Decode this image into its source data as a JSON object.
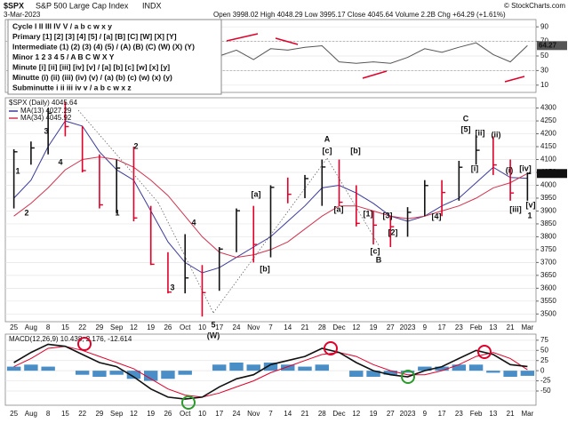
{
  "chart_data": {
    "type": "ohlc",
    "symbol": "$SPX",
    "name": "S&P 500 Large Cap Index",
    "exchange": "INDX",
    "date": "3-Mar-2023",
    "quote": "Open 3998.02  High 4048.29  Low 3995.17  Close 4045.64  Volume 2.2B  Chg +64.29 (+1.61%)",
    "credit": "© StockCharts.com",
    "wave_legend": [
      {
        "text": "Cycle I II III IV V / a b c w x y",
        "color": "#1f1fb0"
      },
      {
        "text": "Primary [1] [2] [3] [4] [5] / [a] [B] [C] [W] [X] [Y]",
        "color": "#111111"
      },
      {
        "text": "Intermediate (1) (2) (3) (4) (5) / (A) (B) (C) (W) (X) (Y)",
        "color": "#7a1a8a"
      },
      {
        "text": "Minor 1 2 3 4 5 / A B C W X Y",
        "color": "#1a2a70"
      },
      {
        "text": "Minute [i] [ii] [iii] [iv] [v] / [a] [b] [c] [w] [x] [y]",
        "color": "#2a8a2a"
      },
      {
        "text": "Minutte (i) (ii) (iii) (iv) (v) / (a) (b) (c) (w) (x) (y)",
        "color": "#d09a00"
      },
      {
        "text": "Subminutte i ii iii iv v / a b c w x z",
        "color": "#888888"
      }
    ],
    "categories": [
      "25",
      "Aug",
      "8",
      "15",
      "22",
      "29",
      "Sep",
      "12",
      "19",
      "26",
      "Oct",
      "10",
      "17",
      "24",
      "Nov",
      "7",
      "14",
      "21",
      "28",
      "Dec",
      "12",
      "19",
      "27",
      "2023",
      "9",
      "17",
      "23",
      "Feb",
      "13",
      "21",
      "Mar"
    ],
    "price": {
      "legend": "$SPX (Daily) 4045.64",
      "ylim": [
        3470,
        4340
      ],
      "yticks": [
        3500,
        3550,
        3600,
        3650,
        3700,
        3750,
        3800,
        3850,
        3900,
        3950,
        4000,
        4050,
        4100,
        4150,
        4200,
        4250,
        4300
      ],
      "last_label": "4045.64",
      "high": [
        4140,
        4170,
        4300,
        4325,
        4230,
        4120,
        4100,
        4150,
        3920,
        3740,
        3810,
        3690,
        3760,
        3910,
        3920,
        4000,
        4030,
        4040,
        4100,
        4100,
        4000,
        3900,
        3880,
        3915,
        4020,
        4020,
        4095,
        4195,
        4190,
        4100,
        4050
      ],
      "low": [
        3910,
        4080,
        4120,
        4190,
        4050,
        3910,
        3890,
        3860,
        3690,
        3580,
        3580,
        3490,
        3590,
        3740,
        3700,
        3720,
        3930,
        3950,
        3920,
        3920,
        3840,
        3770,
        3760,
        3800,
        3880,
        3880,
        3940,
        4080,
        4040,
        3940,
        3940
      ],
      "close": [
        4130,
        4145,
        4280,
        4228,
        4057,
        3924,
        4067,
        3873,
        3693,
        3585,
        3640,
        3583,
        3752,
        3901,
        3770,
        3992,
        3965,
        4026,
        4071,
        3934,
        3852,
        3845,
        3839,
        3895,
        3999,
        3972,
        4070,
        4136,
        4079,
        3970,
        4045.64
      ],
      "up_color": "#111111",
      "down_color": "#e0002a",
      "series": [
        {
          "name": "MA(13) 4027.29",
          "color": "#3a3a9a",
          "values": [
            3950,
            4020,
            4150,
            4250,
            4230,
            4130,
            4060,
            4020,
            3900,
            3780,
            3700,
            3660,
            3680,
            3720,
            3760,
            3800,
            3860,
            3920,
            3990,
            4000,
            3970,
            3930,
            3880,
            3860,
            3880,
            3920,
            3950,
            4010,
            4070,
            4030,
            4027.29
          ]
        },
        {
          "name": "MA(34) 4045.92",
          "color": "#d0334f",
          "values": [
            3880,
            3930,
            3990,
            4060,
            4100,
            4110,
            4100,
            4070,
            4020,
            3960,
            3880,
            3800,
            3740,
            3720,
            3730,
            3750,
            3780,
            3830,
            3880,
            3920,
            3920,
            3900,
            3880,
            3870,
            3880,
            3900,
            3920,
            3950,
            3990,
            4010,
            4045.92
          ]
        }
      ]
    },
    "rsi": {
      "ylim": [
        0,
        100
      ],
      "yticks": [
        10,
        30,
        50,
        70,
        90
      ],
      "last_label": "64.27",
      "color": "#555555",
      "values": [
        60,
        68,
        72,
        55,
        40,
        35,
        55,
        35,
        28,
        30,
        40,
        32,
        50,
        58,
        45,
        60,
        58,
        62,
        64,
        42,
        40,
        42,
        40,
        48,
        60,
        55,
        62,
        68,
        52,
        42,
        64.27
      ]
    },
    "macd": {
      "legend": "MACD(12,26,9) 10.438, 2.176, -12.614",
      "ylim": [
        -85,
        90
      ],
      "yticks": [
        -50,
        -25,
        0,
        25,
        50,
        75
      ],
      "macd": {
        "color": "#111111",
        "values": [
          20,
          45,
          65,
          60,
          40,
          20,
          10,
          -15,
          -45,
          -65,
          -70,
          -65,
          -40,
          -20,
          -10,
          15,
          25,
          35,
          55,
          45,
          20,
          0,
          -10,
          -15,
          0,
          10,
          30,
          50,
          40,
          15,
          10.438
        ]
      },
      "signal": {
        "color": "#e0002a",
        "values": [
          10,
          30,
          55,
          60,
          50,
          35,
          20,
          5,
          -20,
          -45,
          -60,
          -65,
          -55,
          -40,
          -25,
          -5,
          10,
          25,
          40,
          45,
          35,
          15,
          0,
          -10,
          -10,
          0,
          15,
          35,
          45,
          30,
          2.176
        ]
      },
      "histogram": {
        "color": "#4a8ec8",
        "values": [
          10,
          15,
          10,
          0,
          -10,
          -15,
          -10,
          -20,
          -25,
          -20,
          -10,
          0,
          15,
          20,
          15,
          20,
          15,
          10,
          15,
          0,
          -15,
          -15,
          -10,
          -5,
          10,
          10,
          15,
          15,
          -5,
          -15,
          -12.614
        ]
      }
    },
    "wave_labels": [
      {
        "text": "1",
        "color": "#1a2a70"
      },
      {
        "text": "2",
        "color": "#1a2a70"
      },
      {
        "text": "3",
        "color": "#1a2a70"
      },
      {
        "text": "4",
        "color": "#1a2a70"
      },
      {
        "text": "1",
        "color": "#1a2a70"
      },
      {
        "text": "2",
        "color": "#1a2a70"
      },
      {
        "text": "3",
        "color": "#1a2a70"
      },
      {
        "text": "4",
        "color": "#1a2a70"
      },
      {
        "text": "5",
        "color": "#1a2a70"
      },
      {
        "text": "(W)",
        "color": "#7a1a8a"
      },
      {
        "text": "[a]",
        "color": "#2a8a2a"
      },
      {
        "text": "[b]",
        "color": "#2a8a2a"
      },
      {
        "text": "A",
        "color": "#1a2a70"
      },
      {
        "text": "[c]",
        "color": "#2a8a2a"
      },
      {
        "text": "[b]",
        "color": "#2a8a2a"
      },
      {
        "text": "[a]",
        "color": "#2a8a2a"
      },
      {
        "text": "[c]",
        "color": "#2a8a2a"
      },
      {
        "text": "B",
        "color": "#1a2a70"
      },
      {
        "text": "[1]",
        "color": "#2a8a2a"
      },
      {
        "text": "[2]",
        "color": "#2a8a2a"
      },
      {
        "text": "[3]",
        "color": "#2a8a2a"
      },
      {
        "text": "[4]",
        "color": "#2a8a2a"
      },
      {
        "text": "[5]",
        "color": "#2a8a2a"
      },
      {
        "text": "C",
        "color": "#1a2a70"
      },
      {
        "text": "[ii]",
        "color": "#2a8a2a"
      },
      {
        "text": "[i]",
        "color": "#2a8a2a"
      },
      {
        "text": "(ii)",
        "color": "#d09a00"
      },
      {
        "text": "(i)",
        "color": "#d09a00"
      },
      {
        "text": "[iii]",
        "color": "#2a8a2a"
      },
      {
        "text": "[iv]",
        "color": "#2a8a2a"
      },
      {
        "text": "[v]",
        "color": "#2a8a2a"
      },
      {
        "text": "1",
        "color": "#1a2a70"
      }
    ]
  }
}
